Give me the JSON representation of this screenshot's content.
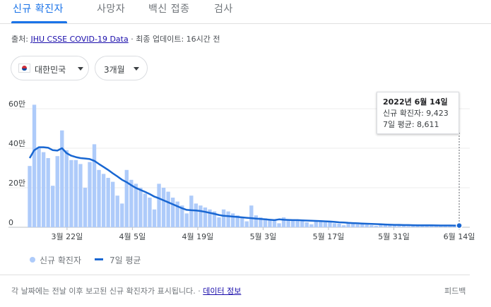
{
  "tabs": [
    {
      "label": "신규 확진자",
      "active": true
    },
    {
      "label": "사망자",
      "active": false
    },
    {
      "label": "백신 접종",
      "active": false
    },
    {
      "label": "검사",
      "active": false
    }
  ],
  "source": {
    "prefix": "출처:",
    "link": "JHU CSSE COVID-19 Data",
    "separator": "·",
    "updated": "최종 업데이트: 16시간 전"
  },
  "filters": {
    "region": "대한민국",
    "period": "3개월"
  },
  "tooltip": {
    "date": "2022년 6월 14일",
    "cases": "신규 확진자: 9,423",
    "average": "7일 평균: 8,611"
  },
  "legend": {
    "bars": "신규 확진자",
    "line": "7일 평균"
  },
  "footer": {
    "note": "각 날짜에는 전날 이후 보고된 신규 확진자가 표시됩니다.",
    "dot": "·",
    "link": "데이터 정보",
    "feedback": "피드백"
  },
  "colors": {
    "bar": "#aecbfa",
    "line": "#1967d2",
    "accent": "#1a73e8"
  },
  "chart_data": {
    "type": "bar",
    "start_date": "2022-03-14",
    "end_date": "2022-06-14",
    "ylim": [
      0,
      650000
    ],
    "y_ticks": [
      {
        "value": 0,
        "label": "0"
      },
      {
        "value": 200000,
        "label": "20만"
      },
      {
        "value": 400000,
        "label": "40만"
      },
      {
        "value": 600000,
        "label": "60만"
      }
    ],
    "x_ticks": [
      {
        "date": "2022-03-22",
        "label": "3월 22일"
      },
      {
        "date": "2022-04-05",
        "label": "4월 5일"
      },
      {
        "date": "2022-04-19",
        "label": "4월 19일"
      },
      {
        "date": "2022-05-03",
        "label": "5월 3일"
      },
      {
        "date": "2022-05-17",
        "label": "5월 17일"
      },
      {
        "date": "2022-05-31",
        "label": "5월 31일"
      },
      {
        "date": "2022-06-14",
        "label": "6월 14일"
      }
    ],
    "grid": true,
    "series": [
      {
        "name": "신규 확진자",
        "type": "bar",
        "values": [
          310000,
          620000,
          400000,
          380000,
          350000,
          210000,
          360000,
          490000,
          390000,
          340000,
          340000,
          320000,
          200000,
          330000,
          420000,
          290000,
          270000,
          250000,
          230000,
          160000,
          120000,
          290000,
          240000,
          220000,
          200000,
          170000,
          150000,
          90000,
          220000,
          200000,
          180000,
          150000,
          130000,
          110000,
          70000,
          160000,
          120000,
          110000,
          100000,
          90000,
          80000,
          50000,
          90000,
          80000,
          70000,
          60000,
          50000,
          30000,
          110000,
          60000,
          50000,
          45000,
          40000,
          35000,
          20000,
          50000,
          40000,
          40000,
          35000,
          30000,
          25000,
          15000,
          30000,
          30000,
          25000,
          25000,
          20000,
          18000,
          10000,
          20000,
          18000,
          15000,
          15000,
          13000,
          10000,
          7000,
          15000,
          13000,
          12000,
          11000,
          10000,
          9000,
          6000,
          12000,
          11000,
          10000,
          9000,
          9000,
          8000,
          6000,
          10000,
          9000,
          9000,
          9423
        ]
      },
      {
        "name": "7일 평균",
        "type": "line",
        "values": [
          350000,
          390000,
          405000,
          405000,
          402000,
          390000,
          388000,
          400000,
          375000,
          362000,
          355000,
          350000,
          348000,
          345000,
          336000,
          320000,
          305000,
          290000,
          273000,
          257000,
          240000,
          228000,
          213000,
          199000,
          189000,
          179000,
          168000,
          155000,
          146000,
          136000,
          126000,
          116000,
          106000,
          96000,
          88000,
          86000,
          85000,
          82000,
          78000,
          73000,
          68000,
          62000,
          58000,
          56000,
          54000,
          52000,
          50000,
          48000,
          46000,
          44000,
          42000,
          40000,
          38000,
          36000,
          40000,
          38000,
          37000,
          36000,
          36000,
          35000,
          34000,
          33000,
          32000,
          31000,
          30000,
          29000,
          27000,
          25000,
          24000,
          22000,
          21000,
          20000,
          19000,
          18000,
          17000,
          16000,
          15000,
          14000,
          13000,
          12000,
          12000,
          11000,
          11000,
          10500,
          10000,
          10000,
          9800,
          9500,
          9200,
          9000,
          8900,
          8800,
          8700,
          8611
        ]
      }
    ]
  }
}
